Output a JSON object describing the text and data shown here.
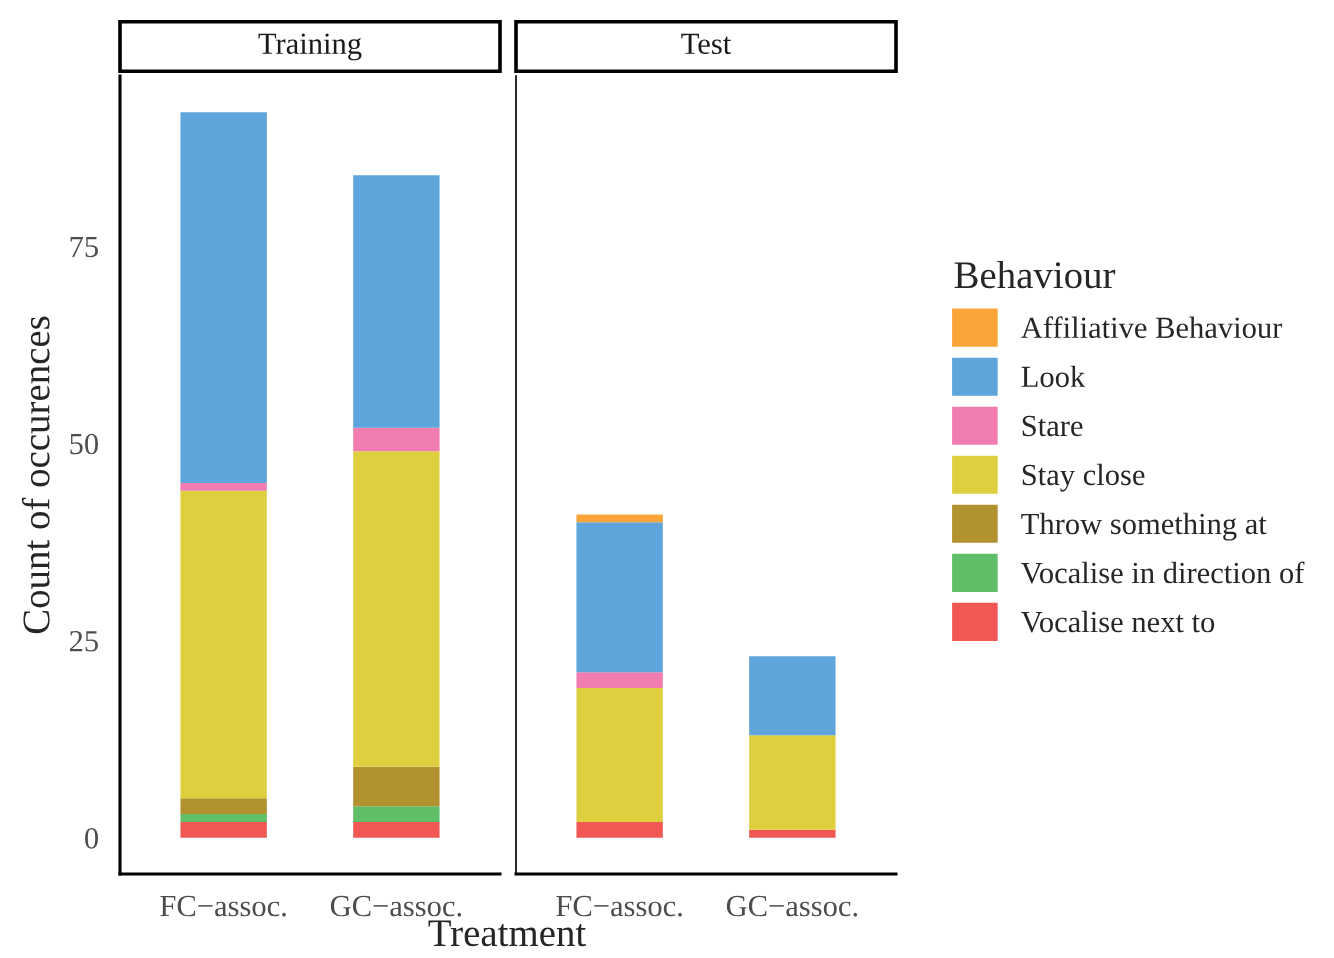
{
  "chart_data": [
    {
      "type": "bar",
      "title": "Training",
      "xlabel": "Treatment",
      "ylabel": "Count of occurences",
      "legend_title": "Behaviour",
      "legend": "right",
      "stacked": true,
      "categories": [
        "FC−assoc.",
        "GC−assoc."
      ],
      "ylim": [
        -4.6,
        96.6
      ],
      "yticks": [
        0,
        25,
        50,
        75
      ],
      "series": [
        {
          "name": "Vocalise next to",
          "color": "#f15854",
          "values": [
            2,
            2
          ]
        },
        {
          "name": "Vocalise in direction of",
          "color": "#60bd68",
          "values": [
            1,
            2
          ]
        },
        {
          "name": "Throw something at",
          "color": "#b2912f",
          "values": [
            2,
            5
          ]
        },
        {
          "name": "Stay close",
          "color": "#decf3f",
          "values": [
            39,
            40
          ]
        },
        {
          "name": "Stare",
          "color": "#f17cb0",
          "values": [
            1,
            3
          ]
        },
        {
          "name": "Look",
          "color": "#5da5da",
          "values": [
            47,
            32
          ]
        }
      ]
    },
    {
      "type": "bar",
      "title": "Test",
      "stacked": true,
      "tick_labels": "x",
      "categories": [
        "FC−assoc.",
        "GC−assoc."
      ],
      "ylim": [
        -4.6,
        96.6
      ],
      "series": [
        {
          "name": "Vocalise next to",
          "color": "#f15854",
          "values": [
            2,
            1
          ]
        },
        {
          "name": "Stay close",
          "color": "#decf3f",
          "values": [
            17,
            12
          ]
        },
        {
          "name": "Stare",
          "color": "#f17cb0",
          "values": [
            2,
            null
          ]
        },
        {
          "name": "Look",
          "color": "#5da5da",
          "values": [
            19,
            10
          ]
        },
        {
          "name": "Affiliative Behaviour",
          "color": "#faa43a",
          "values": [
            1,
            null
          ]
        }
      ]
    }
  ]
}
